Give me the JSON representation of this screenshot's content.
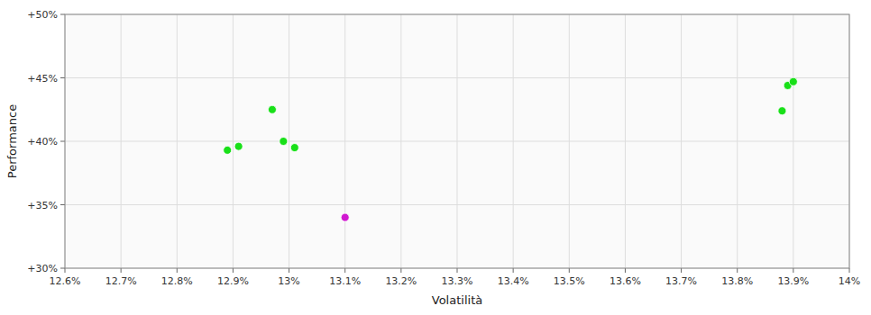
{
  "chart_data": {
    "type": "scatter",
    "xlabel": "Volatilità",
    "ylabel": "Performance",
    "xlim": [
      0.126,
      0.14
    ],
    "ylim": [
      0.3,
      0.5
    ],
    "xticks": [
      {
        "value": 0.126,
        "label": "12.6%"
      },
      {
        "value": 0.127,
        "label": "12.7%"
      },
      {
        "value": 0.128,
        "label": "12.8%"
      },
      {
        "value": 0.129,
        "label": "12.9%"
      },
      {
        "value": 0.13,
        "label": "13%"
      },
      {
        "value": 0.131,
        "label": "13.1%"
      },
      {
        "value": 0.132,
        "label": "13.2%"
      },
      {
        "value": 0.133,
        "label": "13.3%"
      },
      {
        "value": 0.134,
        "label": "13.4%"
      },
      {
        "value": 0.135,
        "label": "13.5%"
      },
      {
        "value": 0.136,
        "label": "13.6%"
      },
      {
        "value": 0.137,
        "label": "13.7%"
      },
      {
        "value": 0.138,
        "label": "13.8%"
      },
      {
        "value": 0.139,
        "label": "13.9%"
      },
      {
        "value": 0.14,
        "label": "14%"
      }
    ],
    "yticks": [
      {
        "value": 0.3,
        "label": "+30%"
      },
      {
        "value": 0.35,
        "label": "+35%"
      },
      {
        "value": 0.4,
        "label": "+40%"
      },
      {
        "value": 0.45,
        "label": "+45%"
      },
      {
        "value": 0.5,
        "label": "+50%"
      }
    ],
    "grid": true,
    "series": [
      {
        "color": "#00dd00",
        "x": [
          0.1289,
          0.1291,
          0.1297,
          0.1299,
          0.1301,
          0.1388,
          0.1389,
          0.139
        ],
        "values": [
          0.393,
          0.396,
          0.425,
          0.4,
          0.395,
          0.424,
          0.444,
          0.447
        ]
      },
      {
        "color": "#cc00cc",
        "x": [
          0.131
        ],
        "values": [
          0.34
        ]
      }
    ]
  }
}
